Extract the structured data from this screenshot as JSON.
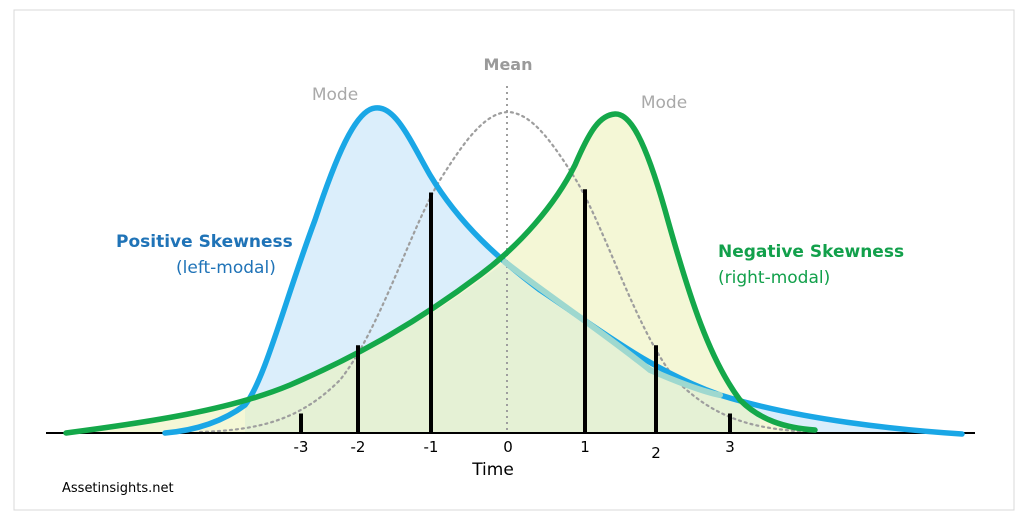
{
  "colors": {
    "positive_line": "#1aa7e6",
    "positive_fill": "#dbeefb",
    "negative_line": "#14a84a",
    "negative_fill": "#f4f7d6",
    "overlap_fill": "#e3f0d5",
    "mean_line": "#9e9e9e",
    "text_blue": "#1f73b7",
    "text_green": "#12a04b",
    "mode_gray": "#a9a9a9"
  },
  "labels": {
    "mean": "Mean",
    "mode_left": "Mode",
    "mode_right": "Mode",
    "positive_title": "Positive Skewness",
    "positive_sub": "(left-modal)",
    "negative_title": "Negative Skewness",
    "negative_sub": "(right-modal)",
    "x_axis": "Time",
    "credit": "Assetinsights.net"
  },
  "ticks": [
    {
      "label": "-3",
      "value": -3,
      "bar_height": 0.06
    },
    {
      "label": "-2",
      "value": -2,
      "bar_height": 0.27
    },
    {
      "label": "-1",
      "value": -1,
      "bar_height": 0.74
    },
    {
      "label": "0",
      "value": 0,
      "bar_height": 0
    },
    {
      "label": "1",
      "value": 1,
      "bar_height": 0.75
    },
    {
      "label": "2",
      "value": 2,
      "bar_height": 0.27
    },
    {
      "label": "3",
      "value": 3,
      "bar_height": 0.06
    }
  ]
}
